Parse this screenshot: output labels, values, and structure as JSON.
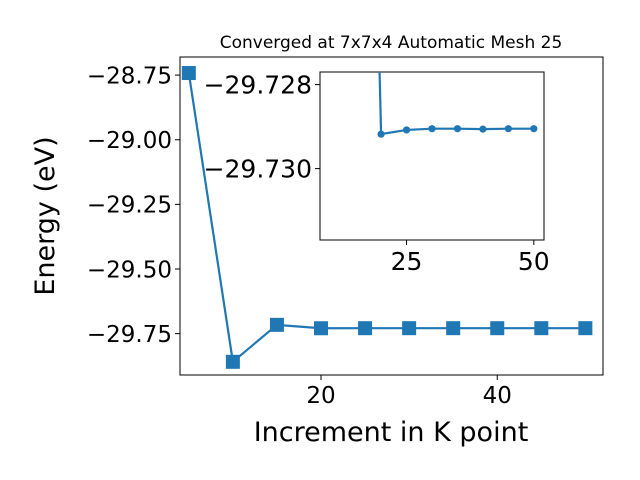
{
  "chart_data": [
    {
      "type": "line",
      "title": "Converged at 7x7x4 Automatic Mesh 25",
      "xlabel": "Increment in K point",
      "ylabel": "Energy (eV)",
      "xlim": [
        4,
        52
      ],
      "ylim": [
        -29.91,
        -28.68
      ],
      "x_ticks": [
        20,
        40
      ],
      "x_tick_labels": [
        "20",
        "40"
      ],
      "y_ticks": [
        -28.75,
        -29.0,
        -29.25,
        -29.5,
        -29.75
      ],
      "y_tick_labels": [
        "−28.75",
        "−29.00",
        "−29.25",
        "−29.50",
        "−29.75"
      ],
      "grid": false,
      "legend": "none",
      "color": "#1f77b4",
      "marker": "square",
      "series": [
        {
          "x": [
            5,
            10,
            15,
            20,
            25,
            30,
            35,
            40,
            45,
            50
          ],
          "values": [
            -28.742,
            -29.859,
            -29.716,
            -29.7292,
            -29.729,
            -29.7289,
            -29.7289,
            -29.729,
            -29.7289,
            -29.7289
          ]
        }
      ]
    },
    {
      "type": "line",
      "role": "inset",
      "xlim": [
        8,
        52
      ],
      "ylim": [
        -29.7317,
        -29.7277
      ],
      "x_ticks": [
        25,
        50
      ],
      "x_tick_labels": [
        "25",
        "50"
      ],
      "y_ticks": [
        -29.73,
        -29.728
      ],
      "y_tick_labels": [
        "−29.730",
        "−29.728"
      ],
      "grid": false,
      "color": "#1f77b4",
      "marker": "circle",
      "series": [
        {
          "x": [
            20,
            25,
            30,
            35,
            40,
            45,
            50
          ],
          "values": [
            -29.72918,
            -29.72908,
            -29.72905,
            -29.72905,
            -29.72906,
            -29.72905,
            -29.72905
          ],
          "lead_in": {
            "x": 19.7,
            "value": -29.7277
          }
        }
      ]
    }
  ]
}
